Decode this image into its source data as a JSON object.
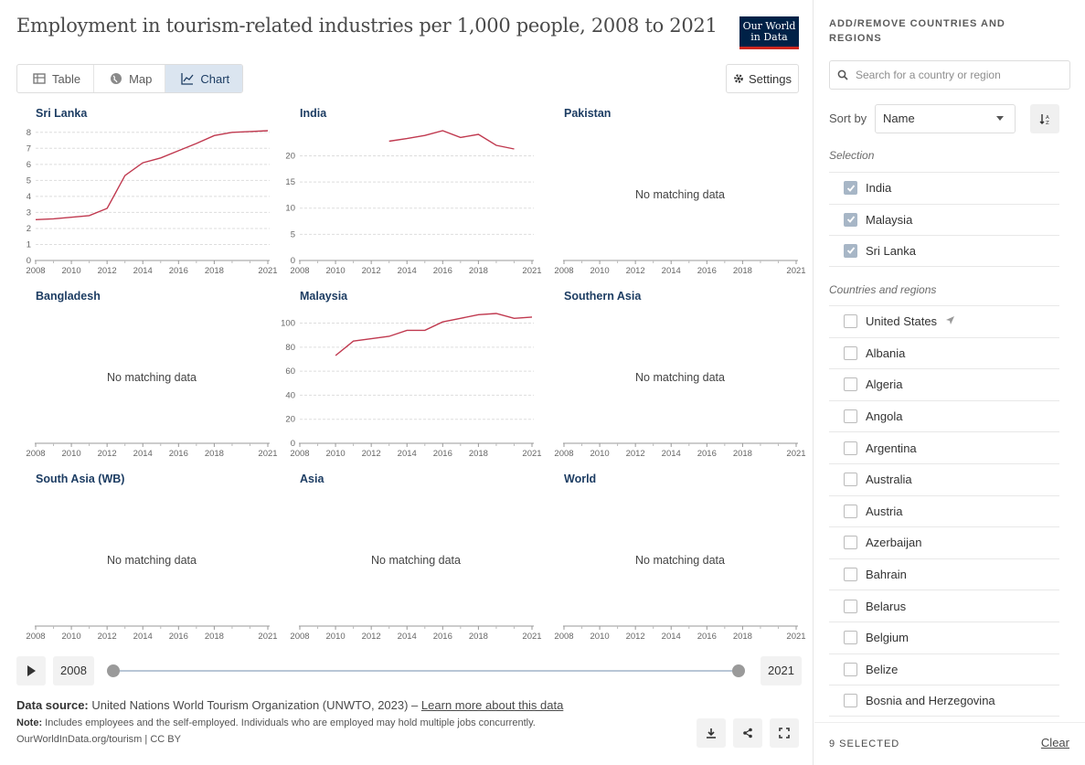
{
  "header": {
    "title": "Employment in tourism-related industries per 1,000 people, 2008 to 2021",
    "logo_line1": "Our World",
    "logo_line2": "in Data"
  },
  "tabs": [
    {
      "label": "Table",
      "icon": "table-icon",
      "active": false
    },
    {
      "label": "Map",
      "icon": "globe-icon",
      "active": false
    },
    {
      "label": "Chart",
      "icon": "line-chart-icon",
      "active": true
    }
  ],
  "settings_label": "Settings",
  "timeline": {
    "start_year": "2008",
    "end_year": "2021"
  },
  "footer": {
    "source_label": "Data source:",
    "source_text": "United Nations World Tourism Organization (UNWTO, 2023) –",
    "source_link": "Learn more about this data",
    "note_label": "Note:",
    "note_text": "Includes employees and the self-employed. Individuals who are employed may hold multiple jobs concurrently.",
    "url_text": "OurWorldInData.org/tourism | CC BY"
  },
  "sidebar": {
    "title": "ADD/REMOVE COUNTRIES AND REGIONS",
    "search_placeholder": "Search for a country or region",
    "sort_label": "Sort by",
    "sort_value": "Name",
    "selection_label": "Selection",
    "selection": [
      "India",
      "Malaysia",
      "Sri Lanka"
    ],
    "regions_label": "Countries and regions",
    "regions": [
      "United States",
      "Albania",
      "Algeria",
      "Angola",
      "Argentina",
      "Australia",
      "Austria",
      "Azerbaijan",
      "Bahrain",
      "Belarus",
      "Belgium",
      "Belize",
      "Bosnia and Herzegovina"
    ],
    "selected_count": "9 SELECTED",
    "clear_label": "Clear"
  },
  "colors": {
    "line": "#c0394f",
    "accent": "#1d3d63",
    "grid": "#dddddd"
  },
  "chart_data": [
    {
      "type": "line",
      "title": "Sri Lanka",
      "x": [
        2008,
        2009,
        2010,
        2011,
        2012,
        2013,
        2014,
        2015,
        2016,
        2017,
        2018,
        2019,
        2020,
        2021
      ],
      "y": [
        2.55,
        2.6,
        2.7,
        2.8,
        3.25,
        5.3,
        6.1,
        6.4,
        6.85,
        7.3,
        7.8,
        8.0,
        8.05,
        8.1
      ],
      "yticks": [
        0,
        1,
        2,
        3,
        4,
        5,
        6,
        7,
        8
      ],
      "ylim": [
        0,
        8.1
      ],
      "xticks": [
        "2008",
        "2010",
        "2012",
        "2014",
        "2016",
        "2018",
        "2021"
      ],
      "no_data": false
    },
    {
      "type": "line",
      "title": "India",
      "x": [
        2013,
        2014,
        2015,
        2016,
        2017,
        2018,
        2019,
        2020
      ],
      "y": [
        22.8,
        23.3,
        23.9,
        24.8,
        23.5,
        24.1,
        22.0,
        21.3
      ],
      "yticks": [
        0,
        5,
        10,
        15,
        20
      ],
      "ylim": [
        0,
        24.8
      ],
      "xticks": [
        "2008",
        "2010",
        "2012",
        "2014",
        "2016",
        "2018",
        "2021"
      ],
      "no_data": false
    },
    {
      "type": "line",
      "title": "Pakistan",
      "x": [],
      "y": [],
      "no_data": true,
      "no_data_label": "No matching data",
      "xticks": [
        "2008",
        "2010",
        "2012",
        "2014",
        "2016",
        "2018",
        "2021"
      ]
    },
    {
      "type": "line",
      "title": "Bangladesh",
      "x": [],
      "y": [],
      "no_data": true,
      "no_data_label": "No matching data",
      "xticks": [
        "2008",
        "2010",
        "2012",
        "2014",
        "2016",
        "2018",
        "2021"
      ]
    },
    {
      "type": "line",
      "title": "Malaysia",
      "x": [
        2010,
        2011,
        2012,
        2013,
        2014,
        2015,
        2016,
        2017,
        2018,
        2019,
        2020,
        2021
      ],
      "y": [
        73,
        85,
        87,
        89,
        94,
        94,
        101,
        104,
        107,
        108,
        104,
        105
      ],
      "yticks": [
        0,
        20,
        40,
        60,
        80,
        100
      ],
      "ylim": [
        0,
        108
      ],
      "xticks": [
        "2008",
        "2010",
        "2012",
        "2014",
        "2016",
        "2018",
        "2021"
      ],
      "no_data": false
    },
    {
      "type": "line",
      "title": "Southern Asia",
      "x": [],
      "y": [],
      "no_data": true,
      "no_data_label": "No matching data",
      "xticks": [
        "2008",
        "2010",
        "2012",
        "2014",
        "2016",
        "2018",
        "2021"
      ]
    },
    {
      "type": "line",
      "title": "South Asia (WB)",
      "x": [],
      "y": [],
      "no_data": true,
      "no_data_label": "No matching data",
      "xticks": [
        "2008",
        "2010",
        "2012",
        "2014",
        "2016",
        "2018",
        "2021"
      ]
    },
    {
      "type": "line",
      "title": "Asia",
      "x": [],
      "y": [],
      "no_data": true,
      "no_data_label": "No matching data",
      "xticks": [
        "2008",
        "2010",
        "2012",
        "2014",
        "2016",
        "2018",
        "2021"
      ]
    },
    {
      "type": "line",
      "title": "World",
      "x": [],
      "y": [],
      "no_data": true,
      "no_data_label": "No matching data",
      "xticks": [
        "2008",
        "2010",
        "2012",
        "2014",
        "2016",
        "2018",
        "2021"
      ]
    }
  ]
}
